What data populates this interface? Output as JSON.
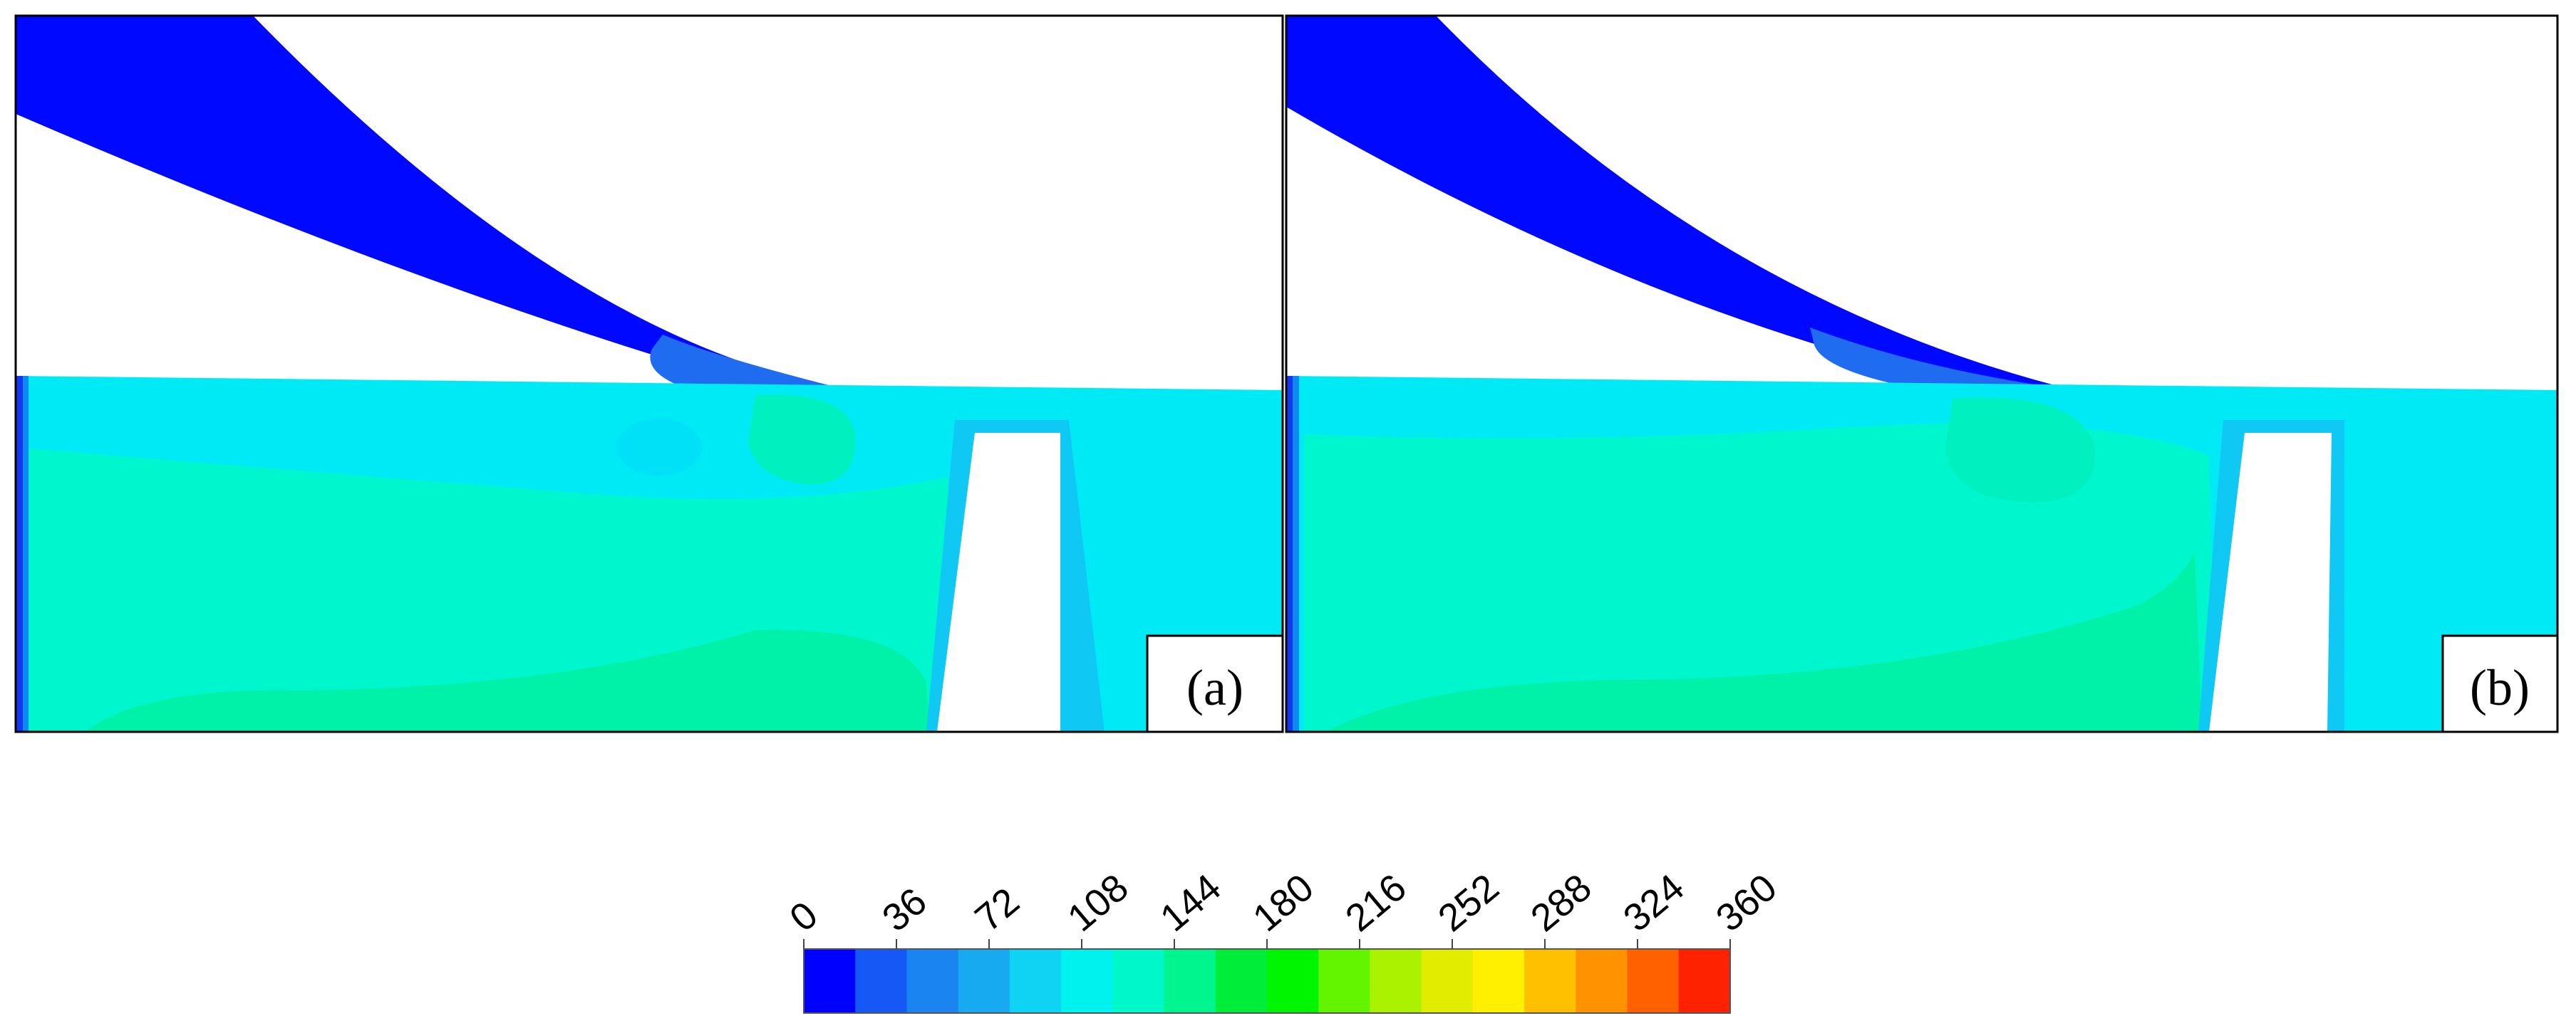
{
  "panels": [
    {
      "label": "(a)"
    },
    {
      "label": "(b)"
    }
  ],
  "colorbar": {
    "min": 0,
    "max": 360,
    "ticks": [
      "0",
      "36",
      "72",
      "108",
      "144",
      "180",
      "216",
      "252",
      "288",
      "324",
      "360"
    ],
    "colors": [
      "#0000ff",
      "#1558f5",
      "#1a84f0",
      "#17aaf0",
      "#10d2f2",
      "#00f2ee",
      "#00f7c9",
      "#00f58e",
      "#00ee3a",
      "#00f600",
      "#63f500",
      "#aaf200",
      "#e2ec00",
      "#fff000",
      "#ffc000",
      "#ff9200",
      "#ff6100",
      "#ff2200"
    ]
  },
  "field_colors": {
    "jet": "#0008ff",
    "jet_tip": "#1f6cf0",
    "upper_layer": "#00eaf6",
    "core": "#00f6cc",
    "core_warm": "#00f2a8",
    "wall_edge": "#0f88f4",
    "wall_dark": "#1238f0"
  }
}
